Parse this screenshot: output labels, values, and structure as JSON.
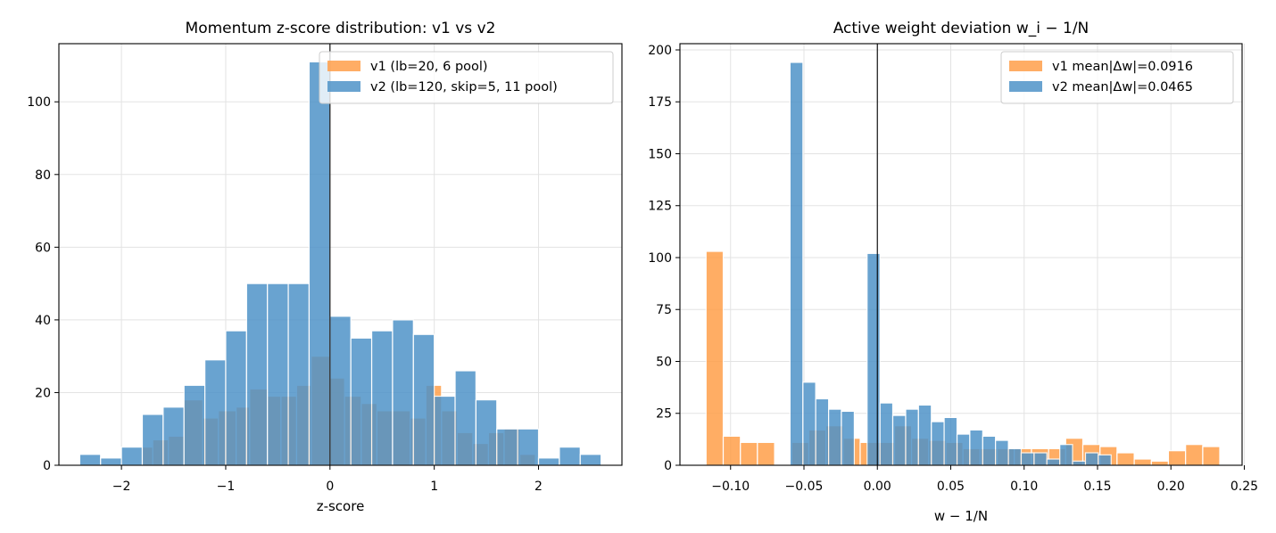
{
  "colors": {
    "v1": "#ff9f4a",
    "v2": "#4f93c8",
    "grid": "#e3e3e3",
    "axis": "#000000"
  },
  "chart_data": [
    {
      "type": "histogram",
      "title": "Momentum z-score distribution: v1 vs v2",
      "xlabel": "z-score",
      "ylabel": "",
      "xlim": [
        -2.6,
        2.8
      ],
      "ylim": [
        0,
        116
      ],
      "xticks": [
        -2,
        -1,
        0,
        1,
        2
      ],
      "xtick_labels": [
        "−2",
        "−1",
        "0",
        "1",
        "2"
      ],
      "yticks": [
        0,
        20,
        40,
        60,
        80,
        100
      ],
      "ytick_labels": [
        "0",
        "20",
        "40",
        "60",
        "80",
        "100"
      ],
      "zero_line": 0,
      "grid": true,
      "legend_position": "top-right",
      "series": [
        {
          "name": "v1 (lb=20, 6 pool)",
          "color_key": "v1",
          "bins": [
            [
              -1.95,
              -1.8,
              0
            ],
            [
              -1.8,
              -1.7,
              5
            ],
            [
              -1.7,
              -1.55,
              7
            ],
            [
              -1.55,
              -1.4,
              8
            ],
            [
              -1.4,
              -1.22,
              18
            ],
            [
              -1.22,
              -1.07,
              13
            ],
            [
              -1.07,
              -0.9,
              15
            ],
            [
              -0.9,
              -0.77,
              16
            ],
            [
              -0.77,
              -0.6,
              21
            ],
            [
              -0.6,
              -0.47,
              19
            ],
            [
              -0.47,
              -0.32,
              19
            ],
            [
              -0.32,
              -0.18,
              22
            ],
            [
              -0.18,
              0.0,
              30
            ],
            [
              0.0,
              0.14,
              24
            ],
            [
              0.14,
              0.3,
              19
            ],
            [
              0.3,
              0.45,
              17
            ],
            [
              0.45,
              0.6,
              15
            ],
            [
              0.6,
              0.77,
              15
            ],
            [
              0.77,
              0.92,
              13
            ],
            [
              0.92,
              1.07,
              22
            ],
            [
              1.07,
              1.22,
              15
            ],
            [
              1.22,
              1.37,
              9
            ],
            [
              1.37,
              1.52,
              6
            ],
            [
              1.52,
              1.67,
              9
            ],
            [
              1.67,
              1.82,
              10
            ],
            [
              1.82,
              1.97,
              3
            ]
          ]
        },
        {
          "name": "v2 (lb=120, skip=5, 11 pool)",
          "color_key": "v2",
          "bins": [
            [
              -2.4,
              -2.2,
              3
            ],
            [
              -2.2,
              -2.0,
              2
            ],
            [
              -2.0,
              -1.8,
              5
            ],
            [
              -1.8,
              -1.6,
              14
            ],
            [
              -1.6,
              -1.4,
              16
            ],
            [
              -1.4,
              -1.2,
              22
            ],
            [
              -1.2,
              -1.0,
              29
            ],
            [
              -1.0,
              -0.8,
              37
            ],
            [
              -0.8,
              -0.6,
              50
            ],
            [
              -0.6,
              -0.4,
              50
            ],
            [
              -0.4,
              -0.2,
              50
            ],
            [
              -0.2,
              0.0,
              111
            ],
            [
              0.0,
              0.2,
              41
            ],
            [
              0.2,
              0.4,
              35
            ],
            [
              0.4,
              0.6,
              37
            ],
            [
              0.6,
              0.8,
              40
            ],
            [
              0.8,
              1.0,
              36
            ],
            [
              1.0,
              1.2,
              19
            ],
            [
              1.2,
              1.4,
              26
            ],
            [
              1.4,
              1.6,
              18
            ],
            [
              1.6,
              1.8,
              10
            ],
            [
              1.8,
              2.0,
              10
            ],
            [
              2.0,
              2.2,
              2
            ],
            [
              2.2,
              2.4,
              5
            ],
            [
              2.4,
              2.6,
              3
            ]
          ]
        }
      ]
    },
    {
      "type": "histogram",
      "title": "Active weight deviation w_i − 1/N",
      "xlabel": "w − 1/N",
      "ylabel": "",
      "xlim": [
        -0.1345,
        0.2485
      ],
      "ylim": [
        0,
        203
      ],
      "xticks": [
        -0.1,
        -0.05,
        0.0,
        0.05,
        0.1,
        0.15,
        0.2,
        0.25
      ],
      "xtick_labels": [
        "−0.10",
        "−0.05",
        "0.00",
        "0.05",
        "0.10",
        "0.15",
        "0.20",
        "0.25"
      ],
      "yticks": [
        0,
        25,
        50,
        75,
        100,
        125,
        150,
        175,
        200
      ],
      "ytick_labels": [
        "0",
        "25",
        "50",
        "75",
        "100",
        "125",
        "150",
        "175",
        "200"
      ],
      "zero_line": 0,
      "grid": true,
      "legend_position": "top-right",
      "series": [
        {
          "name": "v1 mean|Δw|=0.0916",
          "color_key": "v1",
          "bins": [
            [
              -0.1167,
              -0.105,
              103
            ],
            [
              -0.105,
              -0.0933,
              14
            ],
            [
              -0.0933,
              -0.0817,
              11
            ],
            [
              -0.0817,
              -0.07,
              11
            ],
            [
              -0.07,
              -0.0583,
              0
            ],
            [
              -0.0583,
              -0.0467,
              11
            ],
            [
              -0.0467,
              -0.035,
              17
            ],
            [
              -0.035,
              -0.0233,
              19
            ],
            [
              -0.0233,
              -0.0117,
              13
            ],
            [
              -0.0117,
              0.0,
              11
            ],
            [
              0.0,
              0.0117,
              11
            ],
            [
              0.0117,
              0.0233,
              19
            ],
            [
              0.0233,
              0.035,
              13
            ],
            [
              0.035,
              0.0467,
              12
            ],
            [
              0.0467,
              0.0583,
              11
            ],
            [
              0.0583,
              0.07,
              8
            ],
            [
              0.07,
              0.0817,
              8
            ],
            [
              0.0817,
              0.0933,
              8
            ],
            [
              0.0933,
              0.105,
              8
            ],
            [
              0.105,
              0.1167,
              8
            ],
            [
              0.1167,
              0.1283,
              8
            ],
            [
              0.1283,
              0.14,
              13
            ],
            [
              0.14,
              0.1517,
              10
            ],
            [
              0.1517,
              0.1633,
              9
            ],
            [
              0.1633,
              0.175,
              6
            ],
            [
              0.175,
              0.1867,
              3
            ],
            [
              0.1867,
              0.1983,
              2
            ],
            [
              0.1983,
              0.21,
              7
            ],
            [
              0.21,
              0.2217,
              10
            ],
            [
              0.2217,
              0.2333,
              9
            ]
          ]
        },
        {
          "name": "v2 mean|Δw|=0.0465",
          "color_key": "v2",
          "bins": [
            [
              -0.0595,
              -0.0507,
              194
            ],
            [
              -0.0507,
              -0.042,
              40
            ],
            [
              -0.042,
              -0.0332,
              32
            ],
            [
              -0.0332,
              -0.0245,
              27
            ],
            [
              -0.0245,
              -0.0157,
              26
            ],
            [
              -0.0157,
              -0.007,
              0
            ],
            [
              -0.007,
              0.0018,
              102
            ],
            [
              0.0018,
              0.0105,
              30
            ],
            [
              0.0105,
              0.0193,
              24
            ],
            [
              0.0193,
              0.028,
              27
            ],
            [
              0.028,
              0.0368,
              29
            ],
            [
              0.0368,
              0.0455,
              21
            ],
            [
              0.0455,
              0.0543,
              23
            ],
            [
              0.0543,
              0.063,
              15
            ],
            [
              0.063,
              0.0718,
              17
            ],
            [
              0.0718,
              0.0805,
              14
            ],
            [
              0.0805,
              0.0893,
              12
            ],
            [
              0.0893,
              0.098,
              8
            ],
            [
              0.098,
              0.1068,
              6
            ],
            [
              0.1068,
              0.1155,
              6
            ],
            [
              0.1155,
              0.1243,
              3
            ],
            [
              0.1243,
              0.133,
              10
            ],
            [
              0.133,
              0.1418,
              2
            ],
            [
              0.1418,
              0.1505,
              6
            ],
            [
              0.1505,
              0.1593,
              5
            ]
          ]
        }
      ]
    }
  ]
}
